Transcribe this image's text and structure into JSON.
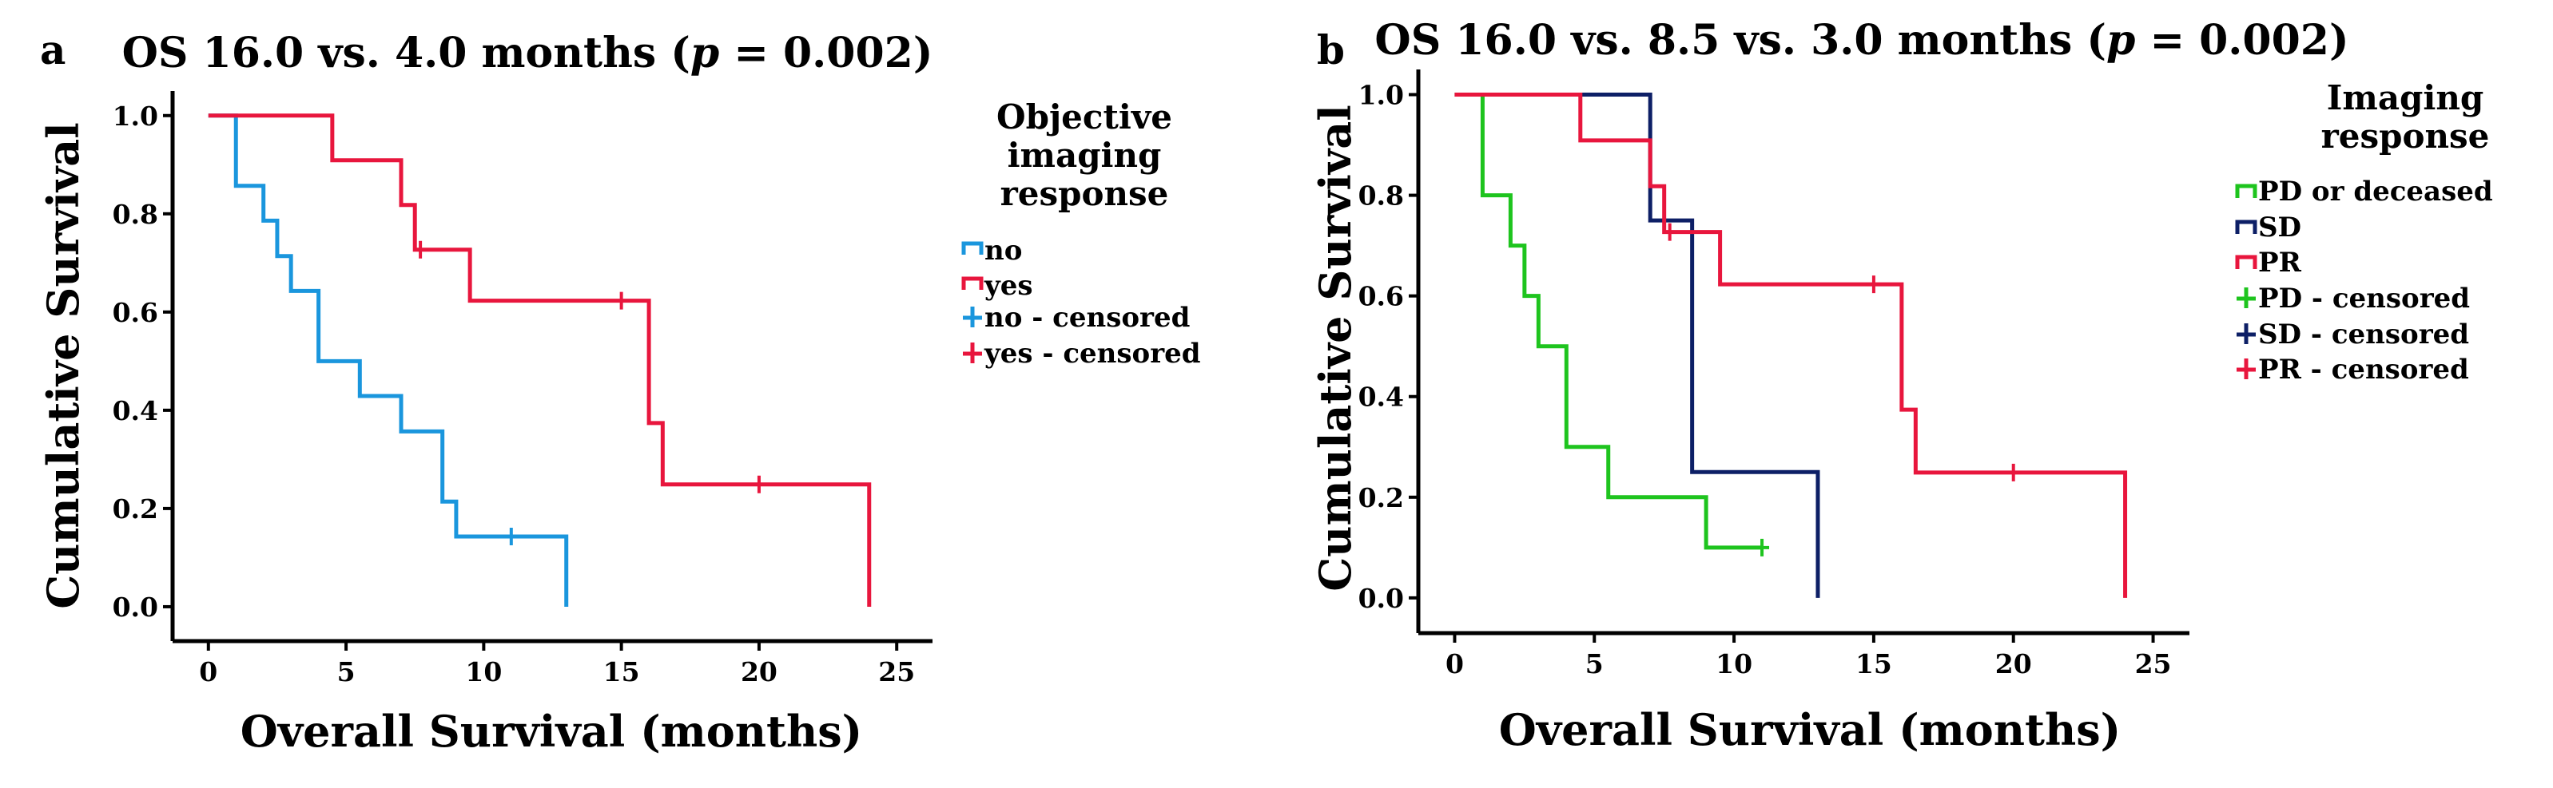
{
  "chart_data": [
    {
      "type": "line",
      "panel": "a",
      "title_prefix": "OS 16.0 vs. 4.0 months (",
      "title_p": "p",
      "title_suffix": " = 0.002)",
      "xlabel": "Overall Survival (months)",
      "ylabel": "Cumulative Survival",
      "xlim": [
        -1.3,
        26.3
      ],
      "ylim": [
        -0.07,
        1.05
      ],
      "xticks": [
        0,
        5,
        10,
        15,
        20,
        25
      ],
      "xtick_labels": [
        "0",
        "5",
        "10",
        "15",
        "20",
        "25"
      ],
      "yticks": [
        0.0,
        0.2,
        0.4,
        0.6,
        0.8,
        1.0
      ],
      "ytick_labels": [
        "0.0",
        "0.2",
        "0.4",
        "0.6",
        "0.8",
        "1.0"
      ],
      "legend_title": [
        "Objective",
        "imaging",
        "response"
      ],
      "legend_labels": [
        "no",
        "yes",
        "no - censored",
        "yes - censored"
      ],
      "series": [
        {
          "name": "no",
          "color": "#1a96dd",
          "steps": [
            [
              0,
              1.0
            ],
            [
              1,
              0.857
            ],
            [
              2,
              0.786
            ],
            [
              2.5,
              0.714
            ],
            [
              3,
              0.643
            ],
            [
              4,
              0.5
            ],
            [
              5.5,
              0.429
            ],
            [
              7,
              0.357
            ],
            [
              8.5,
              0.214
            ],
            [
              9,
              0.143
            ]
          ],
          "end": 13,
          "end_value": 0.0,
          "censored": [
            [
              11,
              0.143
            ]
          ]
        },
        {
          "name": "yes",
          "color": "#e8163d",
          "steps": [
            [
              0,
              1.0
            ],
            [
              4.5,
              0.909
            ],
            [
              7,
              0.818
            ],
            [
              7.5,
              0.727
            ],
            [
              9.5,
              0.623
            ],
            [
              16,
              0.374
            ],
            [
              16.5,
              0.249
            ]
          ],
          "end": 24,
          "end_value": 0.0,
          "censored": [
            [
              7.7,
              0.727
            ],
            [
              15,
              0.623
            ],
            [
              20,
              0.249
            ]
          ]
        }
      ]
    },
    {
      "type": "line",
      "panel": "b",
      "title_prefix": "OS 16.0 vs. 8.5 vs. 3.0 months (",
      "title_p": "p",
      "title_suffix": " = 0.002)",
      "xlabel": "Overall Survival (months)",
      "ylabel": "Cumulative Survival",
      "xlim": [
        -1.3,
        26.3
      ],
      "ylim": [
        -0.07,
        1.05
      ],
      "xticks": [
        0,
        5,
        10,
        15,
        20,
        25
      ],
      "xtick_labels": [
        "0",
        "5",
        "10",
        "15",
        "20",
        "25"
      ],
      "yticks": [
        0.0,
        0.2,
        0.4,
        0.6,
        0.8,
        1.0
      ],
      "ytick_labels": [
        "0.0",
        "0.2",
        "0.4",
        "0.6",
        "0.8",
        "1.0"
      ],
      "legend_title": [
        "Imaging",
        "response"
      ],
      "legend_labels": [
        "PD or deceased",
        "SD",
        "PR",
        "PD - censored",
        "SD - censored",
        "PR - censored"
      ],
      "series": [
        {
          "name": "PD or deceased",
          "color": "#1ec41e",
          "steps": [
            [
              0,
              1.0
            ],
            [
              1,
              0.8
            ],
            [
              2,
              0.7
            ],
            [
              2.5,
              0.6
            ],
            [
              3,
              0.5
            ],
            [
              4,
              0.3
            ],
            [
              5.5,
              0.2
            ],
            [
              9,
              0.1
            ]
          ],
          "end": 11,
          "end_value": 0.1,
          "censored": [
            [
              11,
              0.1
            ]
          ]
        },
        {
          "name": "SD",
          "color": "#0d1f66",
          "steps": [
            [
              0,
              1.0
            ],
            [
              7,
              0.75
            ],
            [
              8.5,
              0.25
            ]
          ],
          "end": 13,
          "end_value": 0.0,
          "censored": []
        },
        {
          "name": "PR",
          "color": "#e8163d",
          "steps": [
            [
              0,
              1.0
            ],
            [
              4.5,
              0.909
            ],
            [
              7,
              0.818
            ],
            [
              7.5,
              0.727
            ],
            [
              9.5,
              0.623
            ],
            [
              16,
              0.374
            ],
            [
              16.5,
              0.249
            ]
          ],
          "end": 24,
          "end_value": 0.0,
          "censored": [
            [
              7.7,
              0.727
            ],
            [
              15,
              0.623
            ],
            [
              20,
              0.249
            ]
          ]
        }
      ]
    }
  ]
}
